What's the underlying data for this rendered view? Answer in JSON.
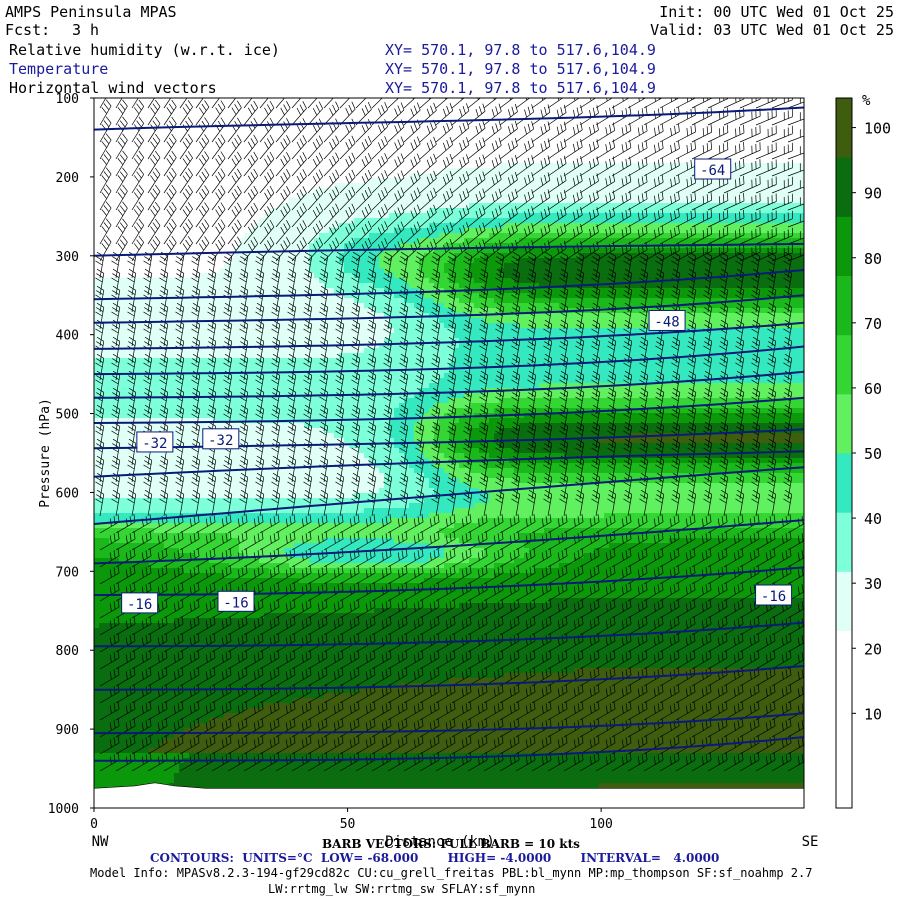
{
  "header": {
    "model": "AMPS Peninsula MPAS",
    "fcst_label": "Fcst:",
    "fcst_value": "3 h",
    "init": "Init: 00 UTC Wed 01 Oct 25",
    "valid": "Valid: 03 UTC Wed 01 Oct 25",
    "fields": [
      {
        "name": "Relative humidity (w.r.t. ice)",
        "xy": "XY= 570.1, 97.8 to 517.6,104.9"
      },
      {
        "name": "Temperature",
        "xy": "XY= 570.1, 97.8 to 517.6,104.9"
      },
      {
        "name": "Horizontal wind vectors",
        "xy": "XY= 570.1, 97.8 to 517.6,104.9"
      }
    ]
  },
  "footer": {
    "barb_text": "BARB VECTORS: FULL BARB = 10 kts",
    "contours_text": "CONTOURS:  UNITS=°C  LOW= -68.000       HIGH= -4.0000       INTERVAL=   4.0000",
    "model_info": "Model Info: MPASv8.2.3-194-gf29cd82c CU:cu_grell_freitas PBL:bl_mynn MP:mp_thompson SF:sf_noahmp 2.7",
    "physics": "LW:rrtmg_lw SW:rrtmg_sw SFLAY:sf_mynn"
  },
  "chart_data": {
    "type": "heatmap",
    "xlabel": "Distance (km)",
    "ylabel": "Pressure (hPa)",
    "left_end_label": "NW",
    "right_end_label": "SE",
    "x_ticks": [
      0,
      50,
      100
    ],
    "xlim": [
      0,
      140
    ],
    "y_ticks": [
      100,
      200,
      300,
      400,
      500,
      600,
      700,
      800,
      900,
      1000
    ],
    "ylim": [
      1000,
      100
    ],
    "colorbar": {
      "unit": "%",
      "levels": [
        10,
        20,
        30,
        40,
        50,
        60,
        70,
        80,
        90,
        100
      ],
      "colors": [
        "#ffffff",
        "#ffffff",
        "#ffffff",
        "#e0fff6",
        "#7dffd9",
        "#34e8c0",
        "#60f060",
        "#33d633",
        "#1ab81a",
        "#0b980b",
        "#0a6e10",
        "#3e5d0e"
      ]
    },
    "temperature_contours": {
      "unit": "°C",
      "low": -68,
      "high": -4,
      "interval": 4,
      "labels": [
        {
          "text": "-64",
          "x": 122,
          "p": 190
        },
        {
          "text": "-48",
          "x": 113,
          "p": 382
        },
        {
          "text": "-32",
          "x": 12,
          "p": 536
        },
        {
          "text": "-32",
          "x": 25,
          "p": 532
        },
        {
          "text": "-16",
          "x": 9,
          "p": 740
        },
        {
          "text": "-16",
          "x": 28,
          "p": 738
        },
        {
          "text": "-16",
          "x": 134,
          "p": 730
        }
      ]
    }
  }
}
